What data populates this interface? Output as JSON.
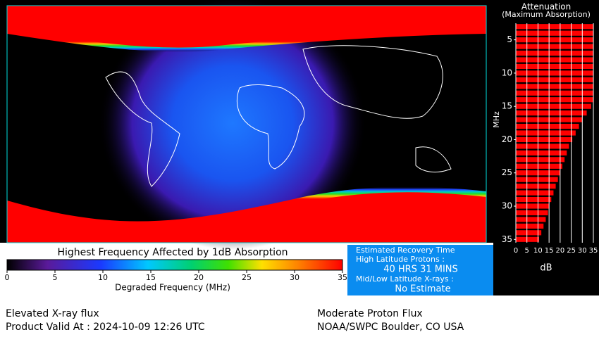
{
  "map": {
    "title": "Highest Frequency Affected by 1dB Absorption",
    "colorbar": {
      "label": "Degraded Frequency (MHz)",
      "lim": [
        0,
        35
      ],
      "ticks": [
        0,
        5,
        10,
        15,
        20,
        25,
        30,
        35
      ]
    }
  },
  "recovery": {
    "title": "Estimated Recovery Time",
    "protons_label": "High Latitude Protons :",
    "protons_value": "40 HRS 31 MINS",
    "xrays_label": "Mid/Low Latitude X-rays :",
    "xrays_value": "No Estimate"
  },
  "chart_data": {
    "type": "bar",
    "title": "Attenuation",
    "subtitle": "(Maximum Absorption)",
    "y_label": "MHz",
    "x_label": "dB",
    "categories": [
      3,
      4,
      5,
      6,
      7,
      8,
      9,
      10,
      11,
      12,
      13,
      14,
      15,
      16,
      17,
      18,
      19,
      20,
      21,
      22,
      23,
      24,
      25,
      26,
      27,
      28,
      29,
      30,
      31,
      32,
      33,
      34,
      35
    ],
    "values": [
      35,
      35,
      35,
      35,
      35,
      35,
      35,
      35,
      35,
      35,
      35,
      35,
      34,
      32,
      30,
      28.5,
      27,
      25.5,
      24,
      23,
      22,
      21,
      20,
      19,
      18,
      17,
      16,
      15,
      14.5,
      13.5,
      12.5,
      11.5,
      10.5
    ],
    "color": "#ff0000",
    "xlim": [
      0,
      35
    ],
    "xticks": [
      0,
      5,
      10,
      15,
      20,
      25,
      30,
      35
    ],
    "ylim": [
      2.5,
      35.5
    ],
    "yticks": [
      5,
      10,
      15,
      20,
      25,
      30,
      35
    ]
  },
  "footer": {
    "left_line1": "Elevated X-ray flux",
    "left_line2": "Product Valid At : 2024-10-09 12:26 UTC",
    "right_line1": "Moderate Proton Flux",
    "right_line2": "NOAA/SWPC Boulder, CO USA"
  }
}
